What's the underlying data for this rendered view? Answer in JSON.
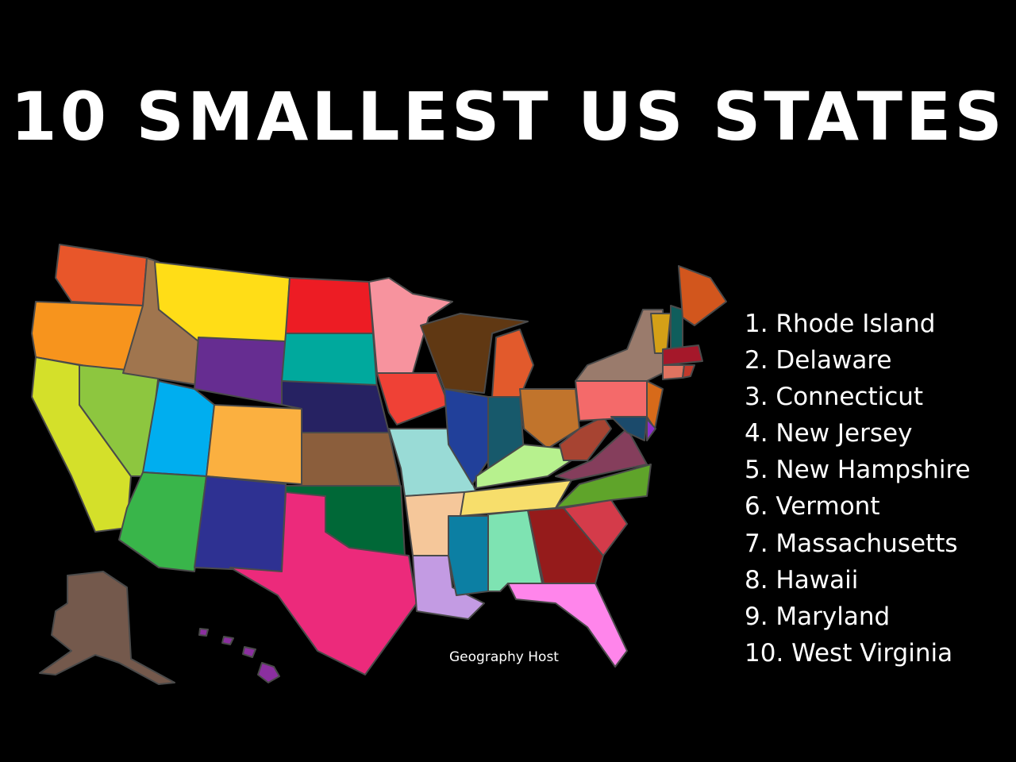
{
  "title": "10 SMALLEST US STATES",
  "credit": "Geography Host",
  "ranking": [
    "1. Rhode Island",
    "2. Delaware",
    "3. Connecticut",
    "4. New Jersey",
    "5. New Hampshire",
    "6. Vermont",
    "7. Massachusetts",
    "8. Hawaii",
    "9. Maryland",
    "10. West Virginia"
  ],
  "map": {
    "background": "#000000",
    "border_color": "#4a4a4a",
    "state_colors": {
      "WA": "#e8562a",
      "OR": "#f7941d",
      "CA": "#d4e02a",
      "NV": "#8dc63f",
      "ID": "#a0754e",
      "MT": "#ffdd17",
      "WY": "#662d91",
      "UT": "#00aeef",
      "CO": "#fbb040",
      "AZ": "#39b54a",
      "NM": "#2e3192",
      "ND": "#ed1c24",
      "SD": "#00a99d",
      "NE": "#262262",
      "KS": "#8b5e3c",
      "OK": "#006837",
      "TX": "#ec2a7b",
      "MN": "#f7939e",
      "IA": "#ef4136",
      "MO": "#99dbd6",
      "AR": "#f5c79a",
      "LA": "#c39be3",
      "WI": "#603813",
      "IL": "#21409a",
      "MI": "#e25a2c",
      "IN": "#17596b",
      "OH": "#c1742c",
      "KY": "#b7f18e",
      "TN": "#f7de6b",
      "MS": "#0c7fa3",
      "AL": "#7ee3b2",
      "GA": "#951b1b",
      "FL": "#ff85eb",
      "SC": "#d43b4a",
      "NC": "#5fa42a",
      "VA": "#853e5c",
      "WV": "#a74432",
      "PA": "#f46a6a",
      "NY": "#9a7b6c",
      "NJ": "#d76a1a",
      "MD": "#1b4a6b",
      "DE": "#8b2fc9",
      "VT": "#d4a017",
      "NH": "#0f5e5c",
      "ME": "#d2561d",
      "MA": "#a5182a",
      "CT": "#e07360",
      "RI": "#c0392b",
      "AK": "#74594c",
      "HI": "#8b2fa0"
    }
  }
}
